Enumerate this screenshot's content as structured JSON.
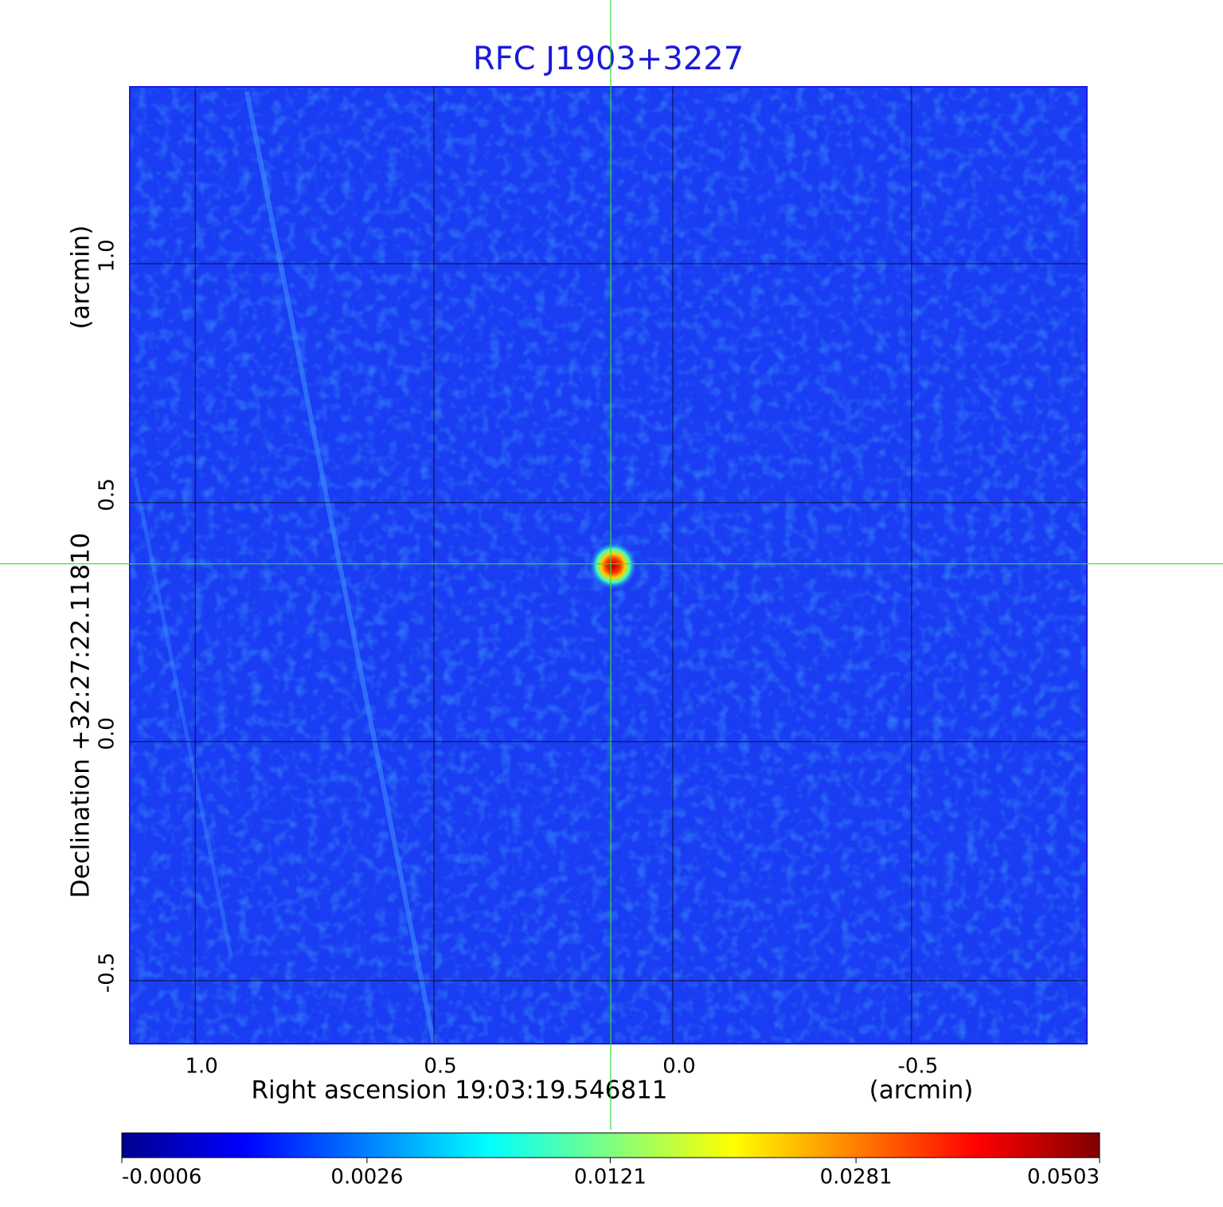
{
  "chart_data": {
    "type": "image",
    "title": "RFC J1903+3227",
    "x_label": "Right ascension  19:03:19.546811",
    "x_unit": "(arcmin)",
    "y_label": "Declination  +32:27:22.11810",
    "y_unit": "(arcmin)",
    "xlim": [
      1.137,
      -0.867
    ],
    "ylim": [
      -0.632,
      1.37
    ],
    "xticks": [
      {
        "value": 1.0,
        "label": "1.0"
      },
      0.5,
      {
        "value": 0.0,
        "label": "0.0"
      },
      -0.5
    ],
    "yticks": [
      -0.5,
      {
        "value": 0.0,
        "label": "0.0"
      },
      0.5,
      {
        "value": 1.0,
        "label": "1.0"
      }
    ],
    "grid": true,
    "crosshair": {
      "x": 0.13,
      "y": 0.372
    },
    "colorbar": {
      "scale": "sqrt",
      "lim": [
        -0.0006,
        0.0503
      ],
      "ticks": [
        -0.0006,
        0.0026,
        0.0121,
        0.0281,
        0.0503
      ]
    }
  }
}
